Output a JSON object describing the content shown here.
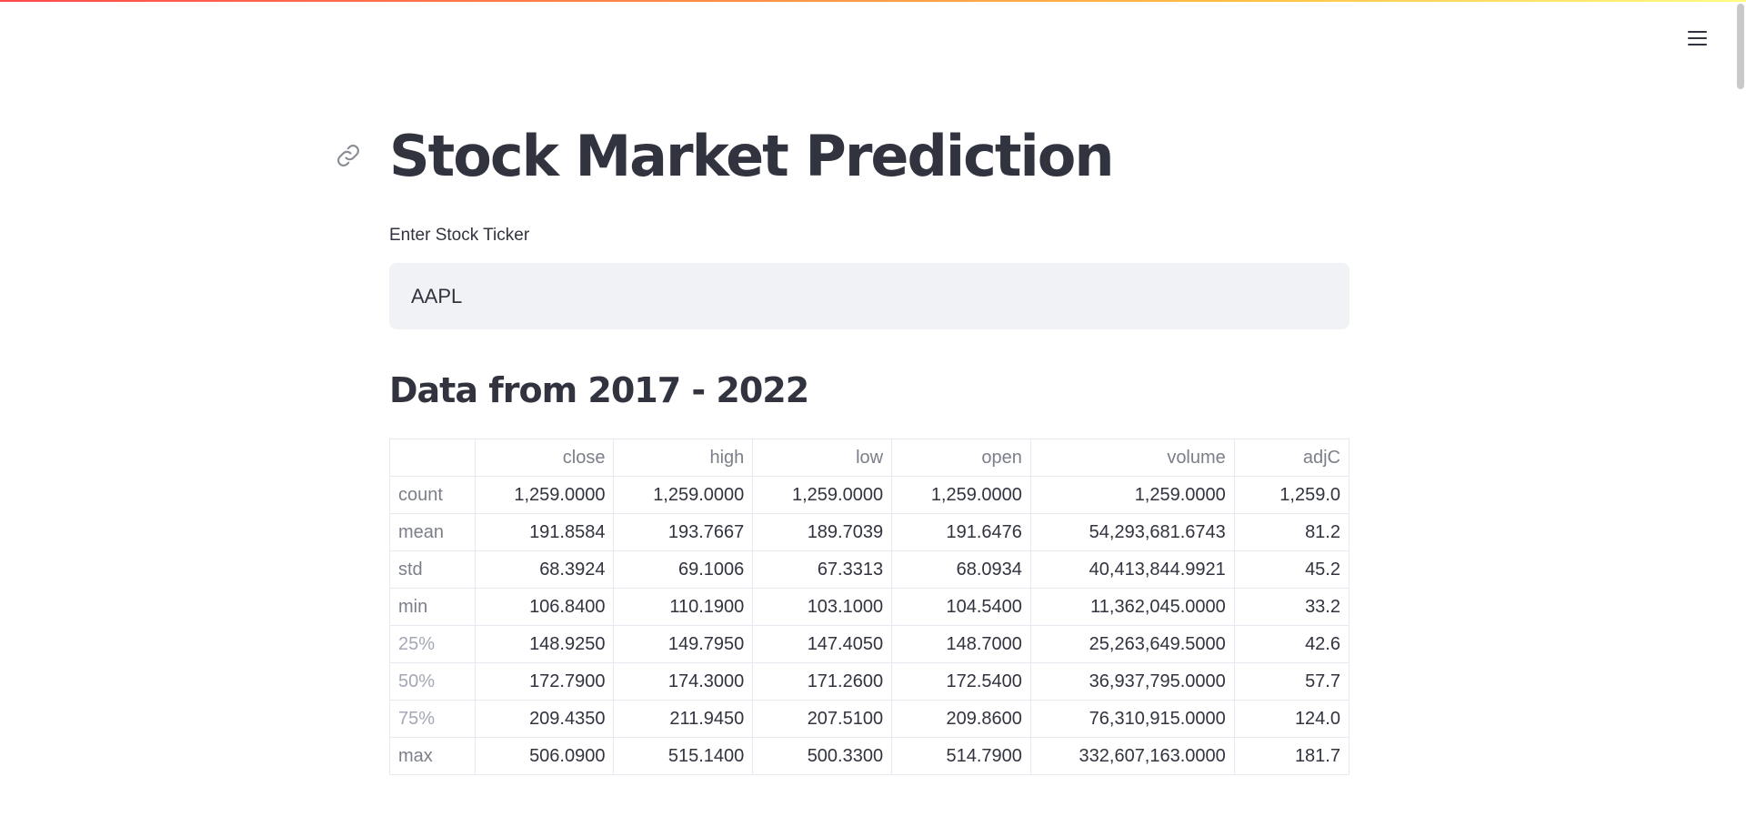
{
  "title": "Stock Market Prediction",
  "ticker_input": {
    "label": "Enter Stock Ticker",
    "value": "AAPL"
  },
  "section_heading": "Data from 2017 - 2022",
  "table": {
    "columns": [
      "",
      "close",
      "high",
      "low",
      "open",
      "volume",
      "adjC"
    ],
    "rows": [
      {
        "label": "count",
        "values": [
          "1,259.0000",
          "1,259.0000",
          "1,259.0000",
          "1,259.0000",
          "1,259.0000",
          "1,259.0"
        ]
      },
      {
        "label": "mean",
        "values": [
          "191.8584",
          "193.7667",
          "189.7039",
          "191.6476",
          "54,293,681.6743",
          "81.2"
        ]
      },
      {
        "label": "std",
        "values": [
          "68.3924",
          "69.1006",
          "67.3313",
          "68.0934",
          "40,413,844.9921",
          "45.2"
        ]
      },
      {
        "label": "min",
        "values": [
          "106.8400",
          "110.1900",
          "103.1000",
          "104.5400",
          "11,362,045.0000",
          "33.2"
        ]
      },
      {
        "label": "25%",
        "values": [
          "148.9250",
          "149.7950",
          "147.4050",
          "148.7000",
          "25,263,649.5000",
          "42.6"
        ]
      },
      {
        "label": "50%",
        "values": [
          "172.7900",
          "174.3000",
          "171.2600",
          "172.5400",
          "36,937,795.0000",
          "57.7"
        ]
      },
      {
        "label": "75%",
        "values": [
          "209.4350",
          "211.9450",
          "207.5100",
          "209.8600",
          "76,310,915.0000",
          "124.0"
        ]
      },
      {
        "label": "max",
        "values": [
          "506.0900",
          "515.1400",
          "500.3300",
          "514.7900",
          "332,607,163.0000",
          "181.7"
        ]
      }
    ]
  },
  "icons": {
    "anchor": "link-icon",
    "menu": "hamburger-menu-icon"
  },
  "colors": {
    "accent_gradient": [
      "#ff4b4b",
      "#ffbd45",
      "#fffd80"
    ],
    "input_bg": "#f0f2f6",
    "text": "#31333f"
  }
}
